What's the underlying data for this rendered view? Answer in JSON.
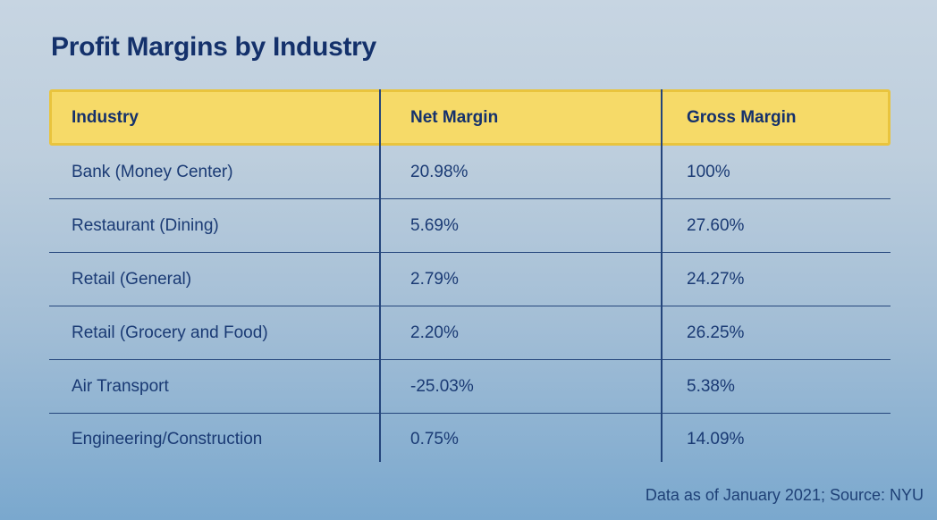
{
  "title": "Profit Margins by Industry",
  "source_note": "Data as of January 2021; Source: NYU",
  "colors": {
    "navy_text": "#1a3a74",
    "header_fill": "#f6da68",
    "header_border": "#e9c43d",
    "grid_line": "#24457c",
    "background_top": "#c7d5e2",
    "background_bottom": "#7aa8ce"
  },
  "table": {
    "columns": [
      "Industry",
      "Net Margin",
      "Gross Margin"
    ],
    "rows": [
      [
        "Bank (Money Center)",
        "20.98%",
        "100%"
      ],
      [
        "Restaurant (Dining)",
        "5.69%",
        "27.60%"
      ],
      [
        "Retail (General)",
        "2.79%",
        "24.27%"
      ],
      [
        "Retail (Grocery and Food)",
        "2.20%",
        "26.25%"
      ],
      [
        "Air Transport",
        "-25.03%",
        "5.38%"
      ],
      [
        "Engineering/Construction",
        "0.75%",
        "14.09%"
      ]
    ]
  },
  "chart_data": {
    "type": "table",
    "title": "Profit Margins by Industry",
    "columns": [
      "Industry",
      "Net Margin",
      "Gross Margin"
    ],
    "rows": [
      {
        "industry": "Bank (Money Center)",
        "net_margin_pct": 20.98,
        "gross_margin_pct": 100
      },
      {
        "industry": "Restaurant (Dining)",
        "net_margin_pct": 5.69,
        "gross_margin_pct": 27.6
      },
      {
        "industry": "Retail (General)",
        "net_margin_pct": 2.79,
        "gross_margin_pct": 24.27
      },
      {
        "industry": "Retail (Grocery and Food)",
        "net_margin_pct": 2.2,
        "gross_margin_pct": 26.25
      },
      {
        "industry": "Air Transport",
        "net_margin_pct": -25.03,
        "gross_margin_pct": 5.38
      },
      {
        "industry": "Engineering/Construction",
        "net_margin_pct": 0.75,
        "gross_margin_pct": 14.09
      }
    ],
    "source": "Data as of January 2021; Source: NYU"
  }
}
